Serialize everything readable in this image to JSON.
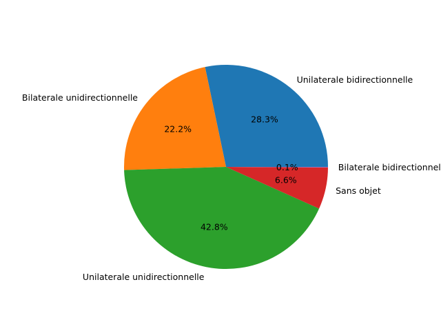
{
  "chart_data": {
    "type": "pie",
    "title": "",
    "slices": [
      {
        "label": "Unilaterale bidirectionnelle",
        "value": 28.3,
        "display": "28.3%",
        "color": "#1f77b4"
      },
      {
        "label": "Bilaterale unidirectionnelle",
        "value": 22.2,
        "display": "22.2%",
        "color": "#ff7f0e"
      },
      {
        "label": "Unilaterale unidirectionnelle",
        "value": 42.8,
        "display": "42.8%",
        "color": "#2ca02c"
      },
      {
        "label": "Sans objet",
        "value": 6.6,
        "display": "6.6%",
        "color": "#d62728"
      },
      {
        "label": "Bilaterale bidirectionnelle",
        "value": 0.1,
        "display": "0.1%",
        "color": "#9467bd"
      }
    ],
    "start_angle_deg": 0,
    "direction": "counterclockwise",
    "legend": false
  }
}
